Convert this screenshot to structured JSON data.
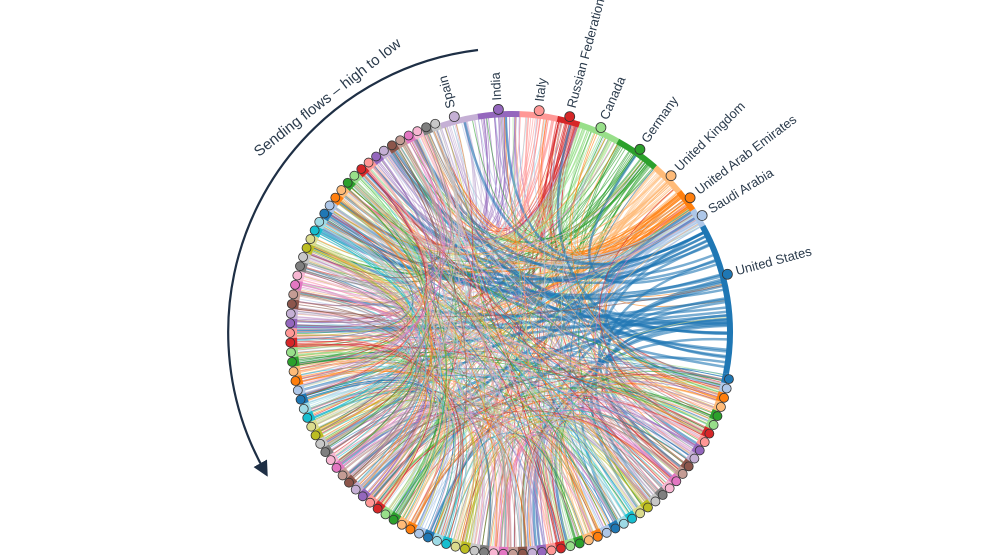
{
  "annotation": "Sending flows – high to low",
  "nodes": [
    {
      "label": "Spain",
      "color": "#c5b0d5"
    },
    {
      "label": "India",
      "color": "#9467bd"
    },
    {
      "label": "Italy",
      "color": "#ff9896"
    },
    {
      "label": "Russian Federation",
      "color": "#d62728"
    },
    {
      "label": "Canada",
      "color": "#98df8a"
    },
    {
      "label": "Germany",
      "color": "#2ca02c"
    },
    {
      "label": "United Kingdom",
      "color": "#ffbb78"
    },
    {
      "label": "United Arab Emirates",
      "color": "#ff7f0e"
    },
    {
      "label": "Saudi Arabia",
      "color": "#aec7e8"
    },
    {
      "label": "United States",
      "color": "#1f77b4"
    }
  ]
}
